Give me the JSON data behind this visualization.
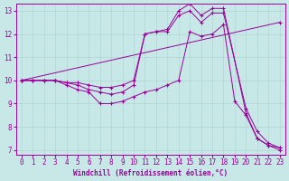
{
  "xlabel": "Windchill (Refroidissement éolien,°C)",
  "ylabel": "",
  "bg_color": "#c8e8e8",
  "line_color": "#990099",
  "grid_color": "#b0d4d4",
  "xlim": [
    -0.5,
    23.5
  ],
  "ylim": [
    6.8,
    13.3
  ],
  "xticks": [
    0,
    1,
    2,
    3,
    4,
    5,
    6,
    7,
    8,
    9,
    10,
    11,
    12,
    13,
    14,
    15,
    16,
    17,
    18,
    19,
    20,
    21,
    22,
    23
  ],
  "yticks": [
    7,
    8,
    9,
    10,
    11,
    12,
    13
  ],
  "series": [
    {
      "x": [
        0,
        1,
        2,
        3,
        4,
        5,
        6,
        7,
        8,
        9,
        10,
        11,
        12,
        13,
        14,
        15,
        16,
        17,
        18,
        20,
        21,
        22,
        23
      ],
      "y": [
        10,
        10,
        10,
        10,
        9.9,
        9.9,
        9.8,
        9.7,
        9.7,
        9.8,
        10.0,
        12.0,
        12.1,
        12.2,
        13.0,
        13.3,
        12.8,
        13.1,
        13.1,
        8.6,
        7.5,
        7.2,
        7.1
      ]
    },
    {
      "x": [
        0,
        1,
        2,
        3,
        4,
        5,
        6,
        7,
        8,
        9,
        10,
        11,
        12,
        13,
        14,
        15,
        16,
        17,
        18,
        20,
        21,
        22,
        23
      ],
      "y": [
        10,
        10,
        10,
        10,
        9.9,
        9.8,
        9.6,
        9.5,
        9.4,
        9.5,
        9.8,
        12.0,
        12.1,
        12.1,
        12.8,
        13.0,
        12.5,
        12.9,
        12.9,
        8.8,
        7.8,
        7.3,
        7.1
      ]
    },
    {
      "x": [
        0,
        1,
        2,
        3,
        4,
        5,
        6,
        7,
        8,
        9,
        10,
        11,
        12,
        13,
        14,
        15,
        16,
        17,
        18,
        19,
        20,
        21,
        22,
        23
      ],
      "y": [
        10,
        10,
        10,
        10,
        9.8,
        9.6,
        9.5,
        9.0,
        9.0,
        9.1,
        9.3,
        9.5,
        9.6,
        9.8,
        10.0,
        12.1,
        11.9,
        12.0,
        12.4,
        9.1,
        8.5,
        7.5,
        7.2,
        7.0
      ]
    },
    {
      "x": [
        0,
        23
      ],
      "y": [
        10,
        12.5
      ]
    }
  ]
}
